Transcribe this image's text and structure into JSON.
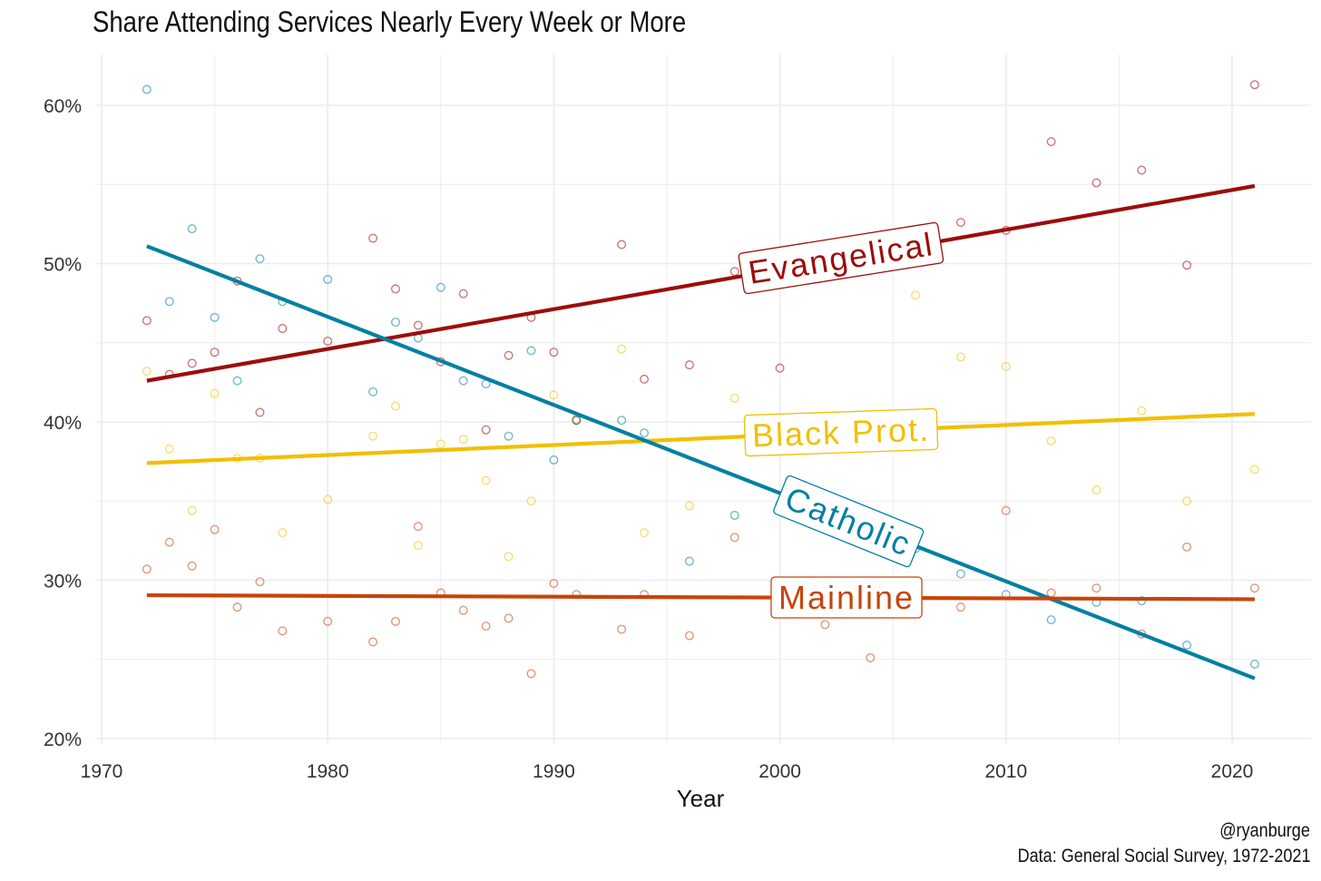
{
  "chart_data": {
    "type": "scatter",
    "title": "Share Attending Services Nearly Every Week or More",
    "xlabel": "Year",
    "ylabel": "",
    "xlim": [
      1968,
      2024
    ],
    "ylim": [
      19.5,
      63
    ],
    "x_ticks": [
      1970,
      1980,
      1990,
      2000,
      2010,
      2020
    ],
    "y_ticks": [
      "20%",
      "30%",
      "40%",
      "50%",
      "60%"
    ],
    "grid": true,
    "legend": "direct labels on trend lines",
    "x": [
      1972,
      1973,
      1974,
      1975,
      1976,
      1977,
      1978,
      1980,
      1982,
      1983,
      1984,
      1985,
      1986,
      1987,
      1988,
      1989,
      1990,
      1991,
      1993,
      1994,
      1996,
      1998,
      2000,
      2002,
      2004,
      2006,
      2008,
      2010,
      2012,
      2014,
      2016,
      2018,
      2021
    ],
    "series": [
      {
        "name": "Evangelical",
        "color": "#9C0D0B",
        "values": [
          46.4,
          43.0,
          43.7,
          44.4,
          48.9,
          40.6,
          45.9,
          45.1,
          51.6,
          48.4,
          46.1,
          43.8,
          48.1,
          39.5,
          44.2,
          46.6,
          44.4,
          40.1,
          51.2,
          42.7,
          43.6,
          49.5,
          43.4,
          null,
          null,
          null,
          52.6,
          52.1,
          57.7,
          55.1,
          55.9,
          49.9,
          61.3
        ],
        "trend": {
          "start": [
            1972,
            42.6
          ],
          "end": [
            2021,
            54.9
          ]
        }
      },
      {
        "name": "Black Prot.",
        "color": "#F2BF00",
        "values": [
          43.2,
          38.3,
          34.4,
          41.8,
          37.7,
          37.7,
          33.0,
          35.1,
          39.1,
          41.0,
          32.2,
          38.6,
          38.9,
          36.3,
          31.5,
          35.0,
          41.7,
          40.2,
          44.6,
          33.0,
          34.7,
          41.5,
          null,
          null,
          null,
          48.0,
          44.1,
          43.5,
          38.8,
          35.7,
          40.7,
          35.0,
          37.0
        ],
        "trend": {
          "start": [
            1972,
            37.4
          ],
          "end": [
            2021,
            40.5
          ]
        }
      },
      {
        "name": "Catholic",
        "color": "#0180A2",
        "values": [
          61.0,
          47.6,
          52.2,
          46.6,
          42.6,
          50.3,
          47.6,
          49.0,
          41.9,
          46.3,
          45.3,
          48.5,
          42.6,
          42.4,
          39.1,
          44.5,
          37.6,
          40.1,
          40.1,
          39.3,
          31.2,
          34.1,
          34.8,
          null,
          null,
          32.0,
          30.4,
          29.1,
          27.5,
          28.6,
          28.7,
          25.9,
          24.7
        ],
        "trend": {
          "start": [
            1972,
            51.1
          ],
          "end": [
            2021,
            23.8
          ]
        }
      },
      {
        "name": "Mainline",
        "color": "#C8440A",
        "values": [
          30.7,
          32.4,
          30.9,
          33.2,
          28.3,
          29.9,
          26.8,
          27.4,
          26.1,
          27.4,
          33.4,
          29.2,
          28.1,
          27.1,
          27.6,
          24.1,
          29.8,
          29.1,
          26.9,
          29.1,
          26.5,
          32.7,
          null,
          27.2,
          25.1,
          null,
          28.3,
          34.4,
          29.2,
          29.5,
          26.6,
          32.1,
          29.5
        ],
        "trend": {
          "start": [
            1972,
            29.05
          ],
          "end": [
            2021,
            28.8
          ]
        }
      }
    ]
  },
  "caption": {
    "handle": "@ryanburge",
    "source": "Data: General Social Survey, 1972-2021"
  }
}
